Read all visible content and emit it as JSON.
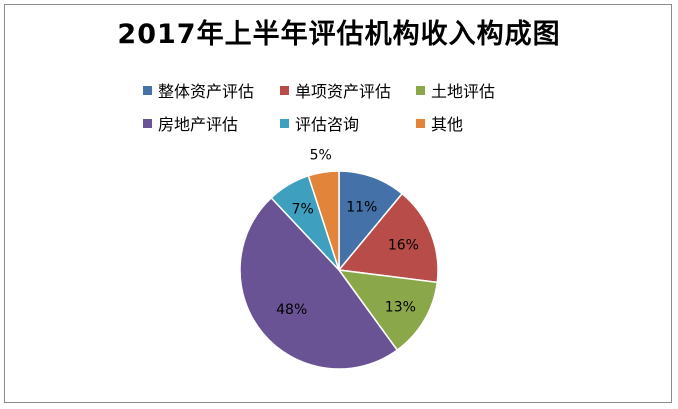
{
  "chart_data": {
    "type": "pie",
    "title": "2017年上半年评估机构收入构成图",
    "categories": [
      "整体资产评估",
      "单项资产评估",
      "土地评估",
      "房地产评估",
      "评估咨询",
      "其他"
    ],
    "values": [
      11,
      16,
      13,
      48,
      7,
      5
    ],
    "labels": [
      "11%",
      "16%",
      "13%",
      "48%",
      "7%",
      "5%"
    ],
    "colors": [
      "#4472a8",
      "#b84c48",
      "#8aa84a",
      "#6a5394",
      "#3f9fbe",
      "#e2853a"
    ],
    "legend_position": "top"
  }
}
